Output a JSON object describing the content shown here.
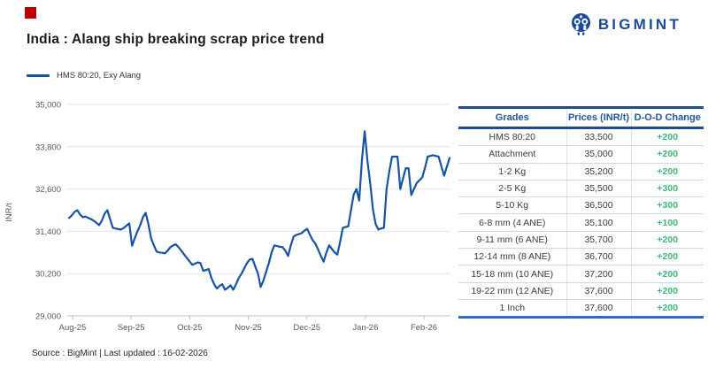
{
  "brand": {
    "logo_text": "BIGMINT",
    "logo_color": "#1b4a9b",
    "accent_square_color": "#c00000"
  },
  "header": {
    "title": "India : Alang ship breaking scrap price trend"
  },
  "legend": {
    "label": "HMS 80:20, Exy Alang"
  },
  "chart_data": {
    "type": "line",
    "title": "India : Alang ship breaking scrap price trend",
    "ylabel": "INR/t",
    "xlabel": "",
    "ylim": [
      29000,
      35000
    ],
    "grid": "horizontal",
    "legend_position": "top-left",
    "y_ticks": [
      29000,
      30200,
      31400,
      32600,
      33800,
      35000
    ],
    "y_ticklabels": [
      "29,000",
      "30,200",
      "31,400",
      "32,600",
      "33,800",
      "35,000"
    ],
    "x_ticklabels": [
      "Aug-25",
      "Sep-25",
      "Oct-25",
      "Nov-25",
      "Dec-25",
      "Jan-26",
      "Feb-26"
    ],
    "line_color": "#1553a5",
    "series": [
      {
        "name": "HMS 80:20, Exy Alang",
        "values": [
          31780,
          31850,
          31950,
          32000,
          31880,
          31800,
          31820,
          31780,
          31750,
          31700,
          31640,
          31575,
          31700,
          31900,
          32000,
          31750,
          31500,
          31480,
          31460,
          31450,
          31500,
          31560,
          31625,
          30990,
          31200,
          31400,
          31570,
          31800,
          31925,
          31600,
          31200,
          31000,
          30825,
          30800,
          30790,
          30775,
          30850,
          30950,
          31000,
          31030,
          30950,
          30850,
          30750,
          30650,
          30550,
          30450,
          30480,
          30520,
          30500,
          30280,
          30300,
          30330,
          30075,
          29900,
          29775,
          29850,
          29900,
          29740,
          29800,
          29865,
          29740,
          29900,
          30075,
          30200,
          30350,
          30500,
          30600,
          30620,
          30400,
          30200,
          29820,
          30000,
          30250,
          30500,
          30800,
          31000,
          30980,
          30960,
          30950,
          30850,
          30700,
          31000,
          31250,
          31300,
          31320,
          31350,
          31420,
          31470,
          31300,
          31150,
          31050,
          30880,
          30700,
          30540,
          30800,
          31000,
          30900,
          30800,
          30740,
          31100,
          31500,
          31520,
          31540,
          32000,
          32450,
          32600,
          32270,
          33440,
          34240,
          33400,
          32770,
          32020,
          31600,
          31450,
          31480,
          31500,
          32600,
          33100,
          33520,
          33520,
          33520,
          32600,
          32900,
          33190,
          33190,
          32430,
          32600,
          32770,
          32850,
          32930,
          33200,
          33520,
          33540,
          33560,
          33540,
          33520,
          33250,
          32980,
          33230,
          33480
        ]
      }
    ]
  },
  "table": {
    "headers": [
      "Grades",
      "Prices (INR/t)",
      "D-O-D Change"
    ],
    "rows": [
      [
        "HMS 80:20",
        "33,500",
        "+200"
      ],
      [
        "Attachment",
        "35,000",
        "+200"
      ],
      [
        "1-2 Kg",
        "35,200",
        "+200"
      ],
      [
        "2-5 Kg",
        "35,500",
        "+300"
      ],
      [
        "5-10 Kg",
        "36,500",
        "+300"
      ],
      [
        "6-8 mm (4 ANE)",
        "35,100",
        "+100"
      ],
      [
        "9-11 mm (6 ANE)",
        "35,700",
        "+200"
      ],
      [
        "12-14 mm (8 ANE)",
        "36,700",
        "+200"
      ],
      [
        "15-18 mm (10 ANE)",
        "37,200",
        "+200"
      ],
      [
        "19-22 mm (12 ANE)",
        "37,600",
        "+200"
      ],
      [
        "1 Inch",
        "37,600",
        "+200"
      ]
    ],
    "change_color": "#3cb878"
  },
  "footer": {
    "text": "Source : BigMint | Last updated : 16-02-2026"
  }
}
